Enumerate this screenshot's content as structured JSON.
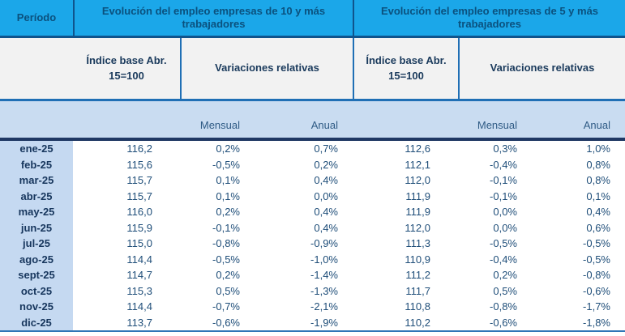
{
  "colors": {
    "header_blue": "#1BA7E9",
    "header_text": "#0B517E",
    "border_dark": "#10548C",
    "border_medium": "#1F6FB5",
    "border_navy": "#1F3864",
    "border_bottom": "#2E75B6",
    "subheader_bg": "#F2F2F2",
    "subheader_text": "#1A3A5C",
    "band_bg": "#C9DCF1",
    "band_text": "#2F5B85",
    "period_col_bg": "#C5D9F1",
    "period_text": "#17365D",
    "value_text": "#1F4E79"
  },
  "table": {
    "period_header": "Período",
    "groups": [
      {
        "title": "Evolución del empleo empresas de 10 y más trabajadores",
        "index_label": "Índice base Abr. 15=100",
        "variations_label": "Variaciones relativas",
        "monthly_label": "Mensual",
        "annual_label": "Anual"
      },
      {
        "title": "Evolución del empleo empresas de 5 y más trabajadores",
        "index_label": "Índice base Abr. 15=100",
        "variations_label": "Variaciones relativas",
        "monthly_label": "Mensual",
        "annual_label": "Anual"
      }
    ],
    "rows": [
      {
        "period": "ene-25",
        "values": [
          "116,2",
          "0,2%",
          "0,7%",
          "112,6",
          "0,3%",
          "1,0%"
        ]
      },
      {
        "period": "feb-25",
        "values": [
          "115,6",
          "-0,5%",
          "0,2%",
          "112,1",
          "-0,4%",
          "0,8%"
        ]
      },
      {
        "period": "mar-25",
        "values": [
          "115,7",
          "0,1%",
          "0,4%",
          "112,0",
          "-0,1%",
          "0,8%"
        ]
      },
      {
        "period": "abr-25",
        "values": [
          "115,7",
          "0,1%",
          "0,0%",
          "111,9",
          "-0,1%",
          "0,1%"
        ]
      },
      {
        "period": "may-25",
        "values": [
          "116,0",
          "0,2%",
          "0,4%",
          "111,9",
          "0,0%",
          "0,4%"
        ]
      },
      {
        "period": "jun-25",
        "values": [
          "115,9",
          "-0,1%",
          "0,4%",
          "112,0",
          "0,0%",
          "0,6%"
        ]
      },
      {
        "period": "jul-25",
        "values": [
          "115,0",
          "-0,8%",
          "-0,9%",
          "111,3",
          "-0,5%",
          "-0,5%"
        ]
      },
      {
        "period": "ago-25",
        "values": [
          "114,4",
          "-0,5%",
          "-1,0%",
          "110,9",
          "-0,4%",
          "-0,5%"
        ]
      },
      {
        "period": "sept-25",
        "values": [
          "114,7",
          "0,2%",
          "-1,4%",
          "111,2",
          "0,2%",
          "-0,8%"
        ]
      },
      {
        "period": "oct-25",
        "values": [
          "115,3",
          "0,5%",
          "-1,3%",
          "111,7",
          "0,5%",
          "-0,6%"
        ]
      },
      {
        "period": "nov-25",
        "values": [
          "114,4",
          "-0,7%",
          "-2,1%",
          "110,8",
          "-0,8%",
          "-1,7%"
        ]
      },
      {
        "period": "dic-25",
        "values": [
          "113,7",
          "-0,6%",
          "-1,9%",
          "110,2",
          "-0,6%",
          "-1,8%"
        ]
      }
    ]
  },
  "chart_data": {
    "type": "table",
    "title": "Evolución del empleo",
    "categories": [
      "ene-25",
      "feb-25",
      "mar-25",
      "abr-25",
      "may-25",
      "jun-25",
      "jul-25",
      "ago-25",
      "sept-25",
      "oct-25",
      "nov-25",
      "dic-25"
    ],
    "series": [
      {
        "name": "Empresas de 10 y más trabajadores - Índice base Abr. 15=100",
        "values": [
          116.2,
          115.6,
          115.7,
          115.7,
          116.0,
          115.9,
          115.0,
          114.4,
          114.7,
          115.3,
          114.4,
          113.7
        ]
      },
      {
        "name": "Empresas de 10 y más trabajadores - Variación mensual (%)",
        "values": [
          0.2,
          -0.5,
          0.1,
          0.1,
          0.2,
          -0.1,
          -0.8,
          -0.5,
          0.2,
          0.5,
          -0.7,
          -0.6
        ]
      },
      {
        "name": "Empresas de 10 y más trabajadores - Variación anual (%)",
        "values": [
          0.7,
          0.2,
          0.4,
          0.0,
          0.4,
          0.4,
          -0.9,
          -1.0,
          -1.4,
          -1.3,
          -2.1,
          -1.9
        ]
      },
      {
        "name": "Empresas de 5 y más trabajadores - Índice base Abr. 15=100",
        "values": [
          112.6,
          112.1,
          112.0,
          111.9,
          111.9,
          112.0,
          111.3,
          110.9,
          111.2,
          111.7,
          110.8,
          110.2
        ]
      },
      {
        "name": "Empresas de 5 y más trabajadores - Variación mensual (%)",
        "values": [
          0.3,
          -0.4,
          -0.1,
          -0.1,
          0.0,
          0.0,
          -0.5,
          -0.4,
          0.2,
          0.5,
          -0.8,
          -0.6
        ]
      },
      {
        "name": "Empresas de 5 y más trabajadores - Variación anual (%)",
        "values": [
          1.0,
          0.8,
          0.8,
          0.1,
          0.4,
          0.6,
          -0.5,
          -0.5,
          -0.8,
          -0.6,
          -1.7,
          -1.8
        ]
      }
    ]
  }
}
